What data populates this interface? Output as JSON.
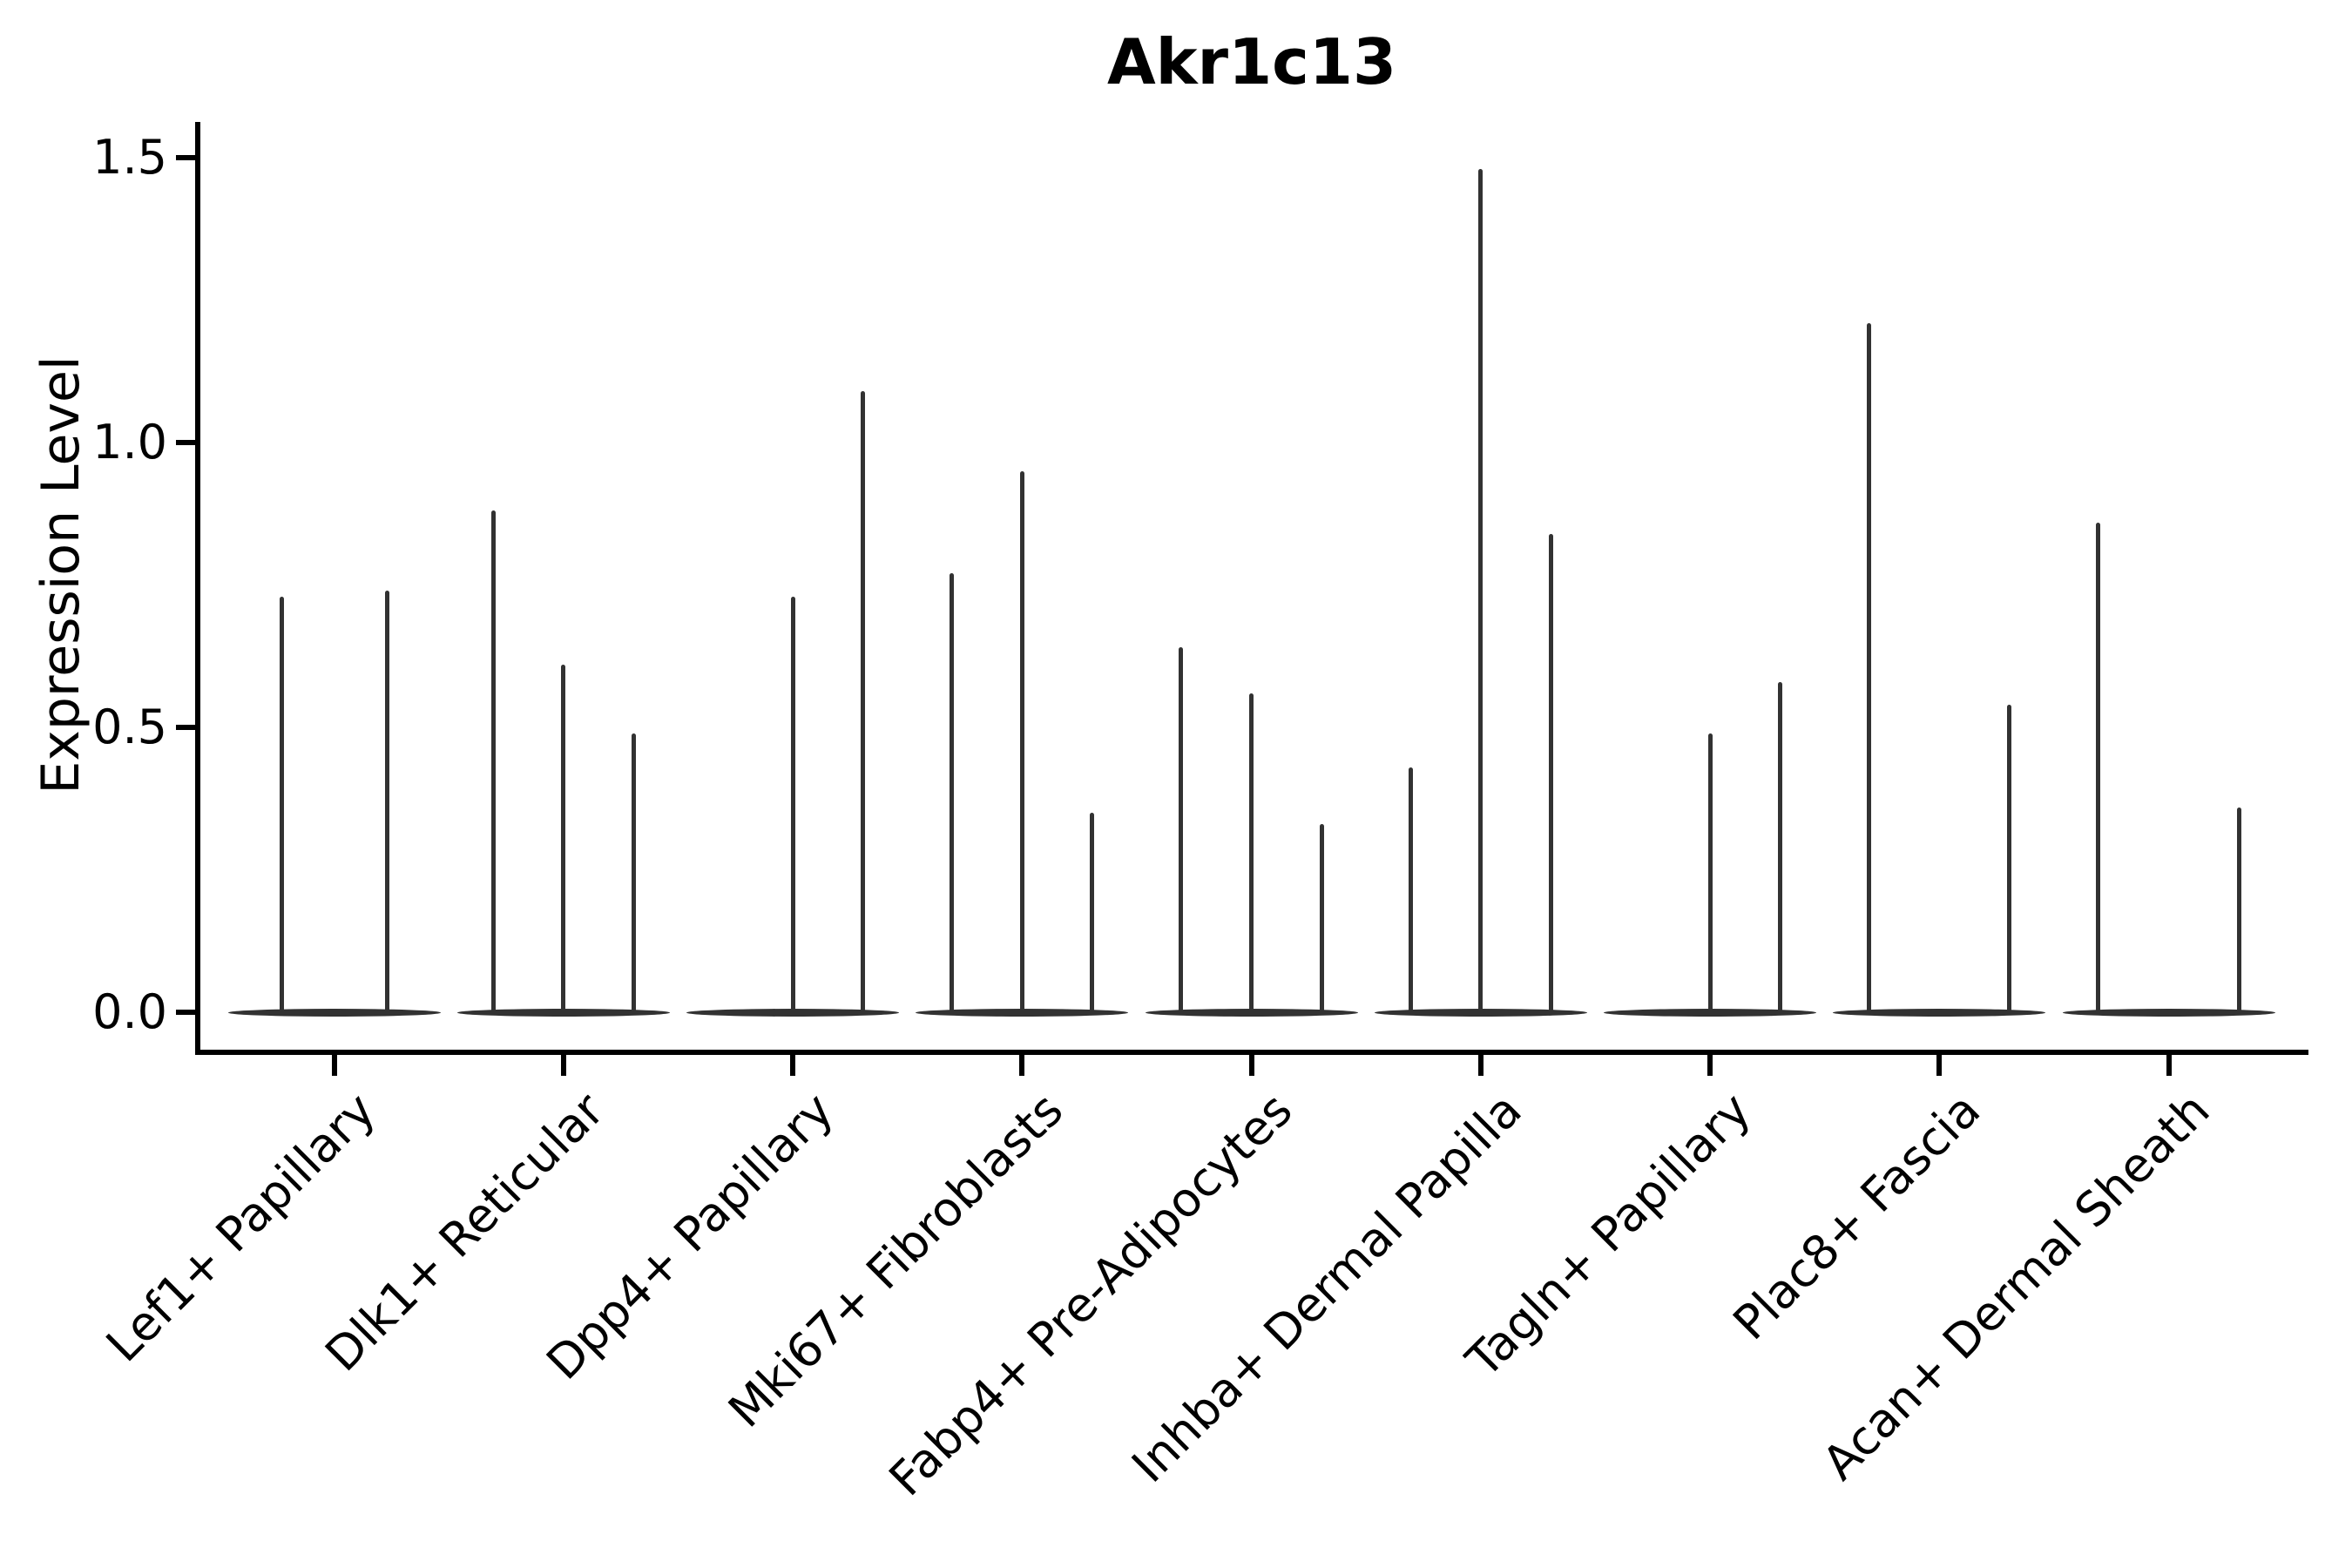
{
  "figure": {
    "background": "#ffffff",
    "axis_color": "#000000",
    "violin_color": "#323232"
  },
  "chart_data": {
    "type": "violin",
    "title": "Akr1c13",
    "ylabel": "Expression Level",
    "xlabel": "",
    "grid": false,
    "legend": "none",
    "ylim_view": [
      -0.07,
      1.56
    ],
    "yticks": [
      0.0,
      0.5,
      1.0,
      1.5
    ],
    "ytick_labels": [
      "0.0",
      "0.5",
      "1.0",
      "1.5"
    ],
    "categories": [
      "Lef1+ Papillary",
      "Dlk1+ Reticular",
      "Dpp4+ Papillary",
      "Mki67+ Fibroblasts",
      "Fabp4+ Pre-Adipocytes",
      "Inhba+ Dermal Papilla",
      "Tagln+ Papillary",
      "Plac8+ Fascia",
      "Acan+ Dermal Sheath"
    ],
    "series": [
      {
        "category": "Lef1+ Papillary",
        "violin_peaks": [
          0.73,
          0.74
        ]
      },
      {
        "category": "Dlk1+ Reticular",
        "violin_peaks": [
          0.88,
          0.61,
          0.49
        ]
      },
      {
        "category": "Dpp4+ Papillary",
        "violin_peaks": [
          0,
          0.73,
          1.09
        ]
      },
      {
        "category": "Mki67+ Fibroblasts",
        "violin_peaks": [
          0.77,
          0.95,
          0.35
        ]
      },
      {
        "category": "Fabp4+ Pre-Adipocytes",
        "violin_peaks": [
          0.64,
          0.56,
          0.33
        ]
      },
      {
        "category": "Inhba+ Dermal Papilla",
        "violin_peaks": [
          0.43,
          1.48,
          0.84
        ]
      },
      {
        "category": "Tagln+ Papillary",
        "violin_peaks": [
          0,
          0.49,
          0.58
        ]
      },
      {
        "category": "Plac8+ Fascia",
        "violin_peaks": [
          1.21,
          0,
          0.54
        ]
      },
      {
        "category": "Acan+ Dermal Sheath",
        "violin_peaks": [
          0.86,
          0,
          0.36
        ]
      }
    ],
    "note": "Sparse expression violins: each category holds 2-3 very thin violins; each violin is a flat base at 0 with a thin spike whose top equals its max expression value (0 = flat base only)."
  }
}
